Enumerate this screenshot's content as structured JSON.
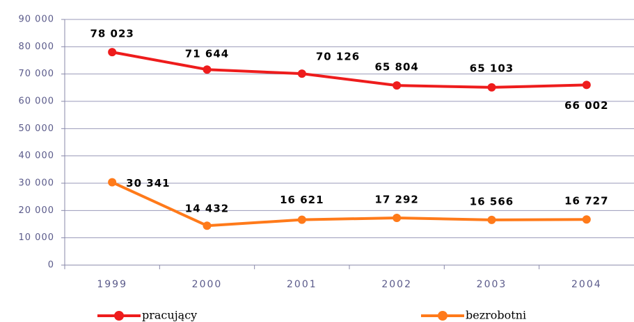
{
  "chart_data": {
    "type": "line",
    "categories": [
      "1999",
      "2000",
      "2001",
      "2002",
      "2003",
      "2004"
    ],
    "series": [
      {
        "name": "pracujący",
        "color": "#ee1c1c",
        "values": [
          78023,
          71644,
          70126,
          65804,
          65103,
          66002
        ],
        "value_labels": [
          "78 023",
          "71 644",
          "70 126",
          "65 804",
          "65 103",
          "66 002"
        ]
      },
      {
        "name": "bezrobotni",
        "color": "#ff7a1a",
        "values": [
          30341,
          14432,
          16621,
          17292,
          16566,
          16727
        ],
        "value_labels": [
          "30 341",
          "14 432",
          "16 621",
          "17 292",
          "16 566",
          "16 727"
        ]
      }
    ],
    "ylim": [
      0,
      90000
    ],
    "yticks": [
      0,
      {
        "value": 10000,
        "label": "10 000"
      },
      {
        "value": 20000,
        "label": "20 000"
      },
      {
        "value": 30000,
        "label": "30 000"
      },
      {
        "value": 40000,
        "label": "40 000"
      },
      {
        "value": 50000,
        "label": "50 000"
      },
      {
        "value": 60000,
        "label": "60 000"
      },
      {
        "value": 70000,
        "label": "70 000"
      },
      {
        "value": 80000,
        "label": "80 000"
      },
      {
        "value": 90000,
        "label": "90 000"
      }
    ],
    "grid": true,
    "legend": "bottom"
  }
}
